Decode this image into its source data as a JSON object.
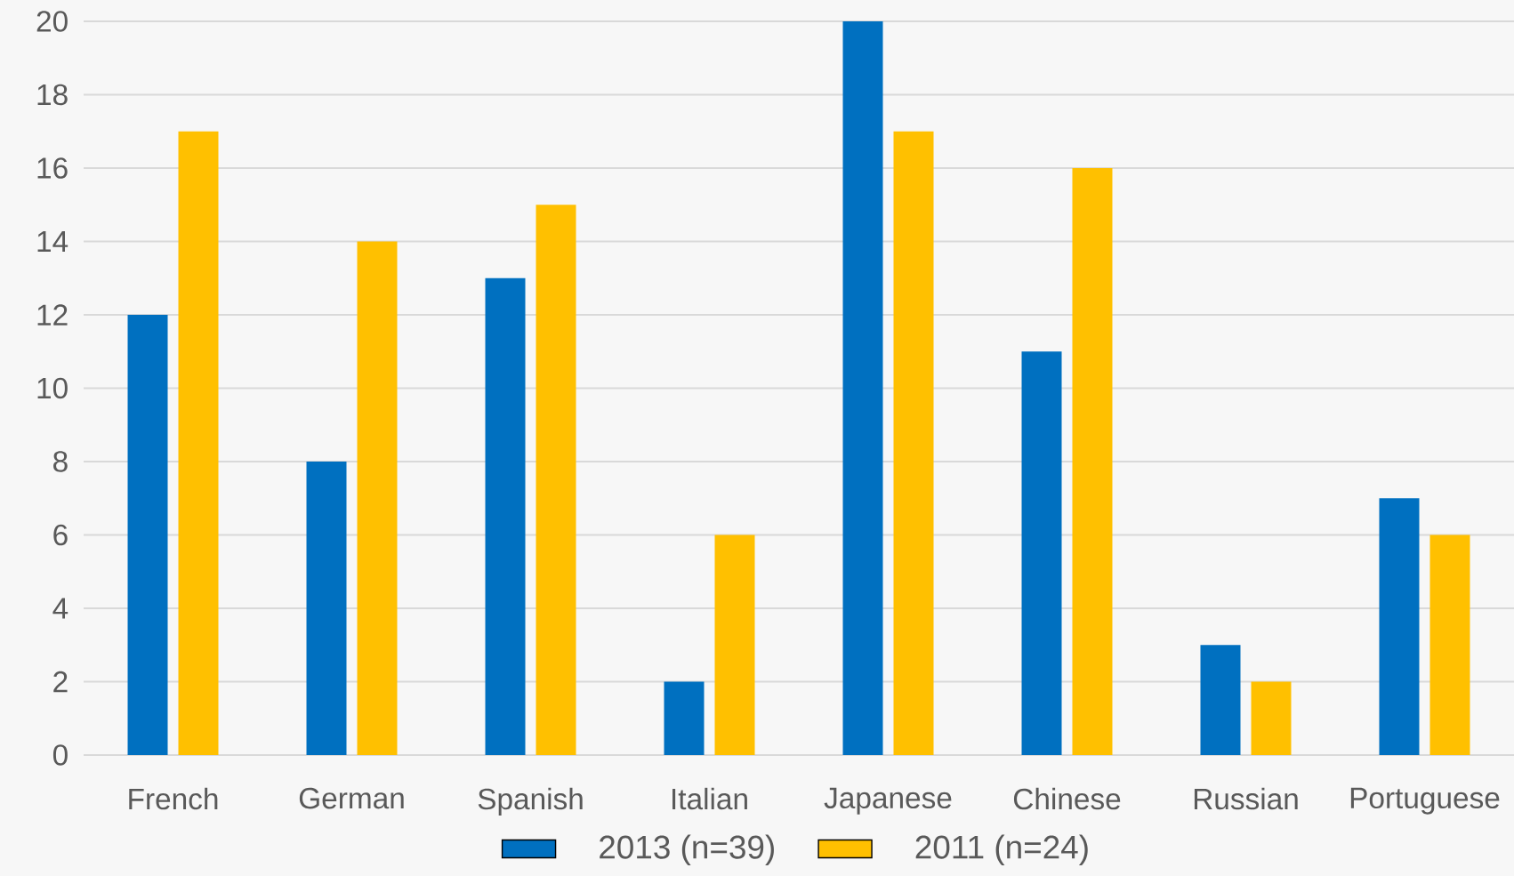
{
  "chart_data": {
    "type": "bar",
    "categories": [
      "French",
      "German",
      "Spanish",
      "Italian",
      "Japanese",
      "Chinese",
      "Russian",
      "Portuguese"
    ],
    "series": [
      {
        "name": "2013 (n=39)",
        "color": "#0070c0",
        "values": [
          12,
          8,
          13,
          2,
          20,
          11,
          3,
          7
        ]
      },
      {
        "name": "2011 (n=24)",
        "color": "#ffc000",
        "values": [
          17,
          14,
          15,
          6,
          17,
          16,
          2,
          6
        ]
      }
    ],
    "ylim": [
      0,
      20
    ],
    "yticks": [
      0,
      2,
      4,
      6,
      8,
      10,
      12,
      14,
      16,
      18,
      20
    ],
    "grid": "y",
    "legend": "bottom"
  }
}
